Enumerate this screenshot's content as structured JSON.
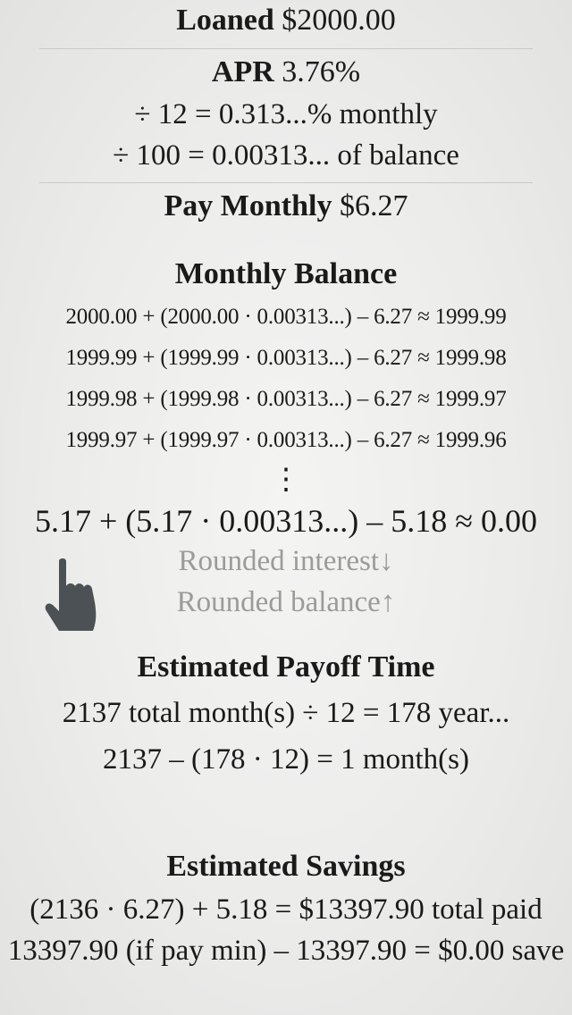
{
  "loan": {
    "label": "Loaned",
    "value": "$2000.00"
  },
  "apr": {
    "label": "APR",
    "value": "3.76%",
    "monthly_line": "÷ 12 = 0.313...% monthly",
    "balance_line": "÷ 100 = 0.00313... of balance"
  },
  "pay": {
    "label": "Pay Monthly",
    "value": "$6.27"
  },
  "monthly_balance": {
    "title": "Monthly Balance",
    "rows": [
      "2000.00 + (2000.00 · 0.00313...) – 6.27 ≈ 1999.99",
      "1999.99 + (1999.99 · 0.00313...) – 6.27 ≈ 1999.98",
      "1999.98 + (1999.98 · 0.00313...) – 6.27 ≈ 1999.97",
      "1999.97 + (1999.97 · 0.00313...) – 6.27 ≈ 1999.96"
    ],
    "ellipsis": "⋮",
    "final_row": "5.17 + (5.17 · 0.00313...) – 5.18 ≈ 0.00",
    "rounded_interest": "Rounded interest",
    "rounded_interest_arrow": "↓",
    "rounded_balance": "Rounded balance",
    "rounded_balance_arrow": "↑"
  },
  "payoff": {
    "title": "Estimated Payoff Time",
    "line1": "2137 total month(s) ÷ 12 = 178 year...",
    "line2": "2137 – (178 · 12) = 1 month(s)"
  },
  "savings": {
    "title": "Estimated Savings",
    "line1": "(2136 · 6.27) + 5.18 = $13397.90 total paid",
    "line2": "13397.90 (if pay min) – 13397.90 = $0.00 save"
  },
  "icons": {
    "hand": "hand-pointer-icon"
  },
  "colors": {
    "text": "#1a1a1a",
    "muted": "#9b9b9b",
    "hand": "#4b5154"
  }
}
